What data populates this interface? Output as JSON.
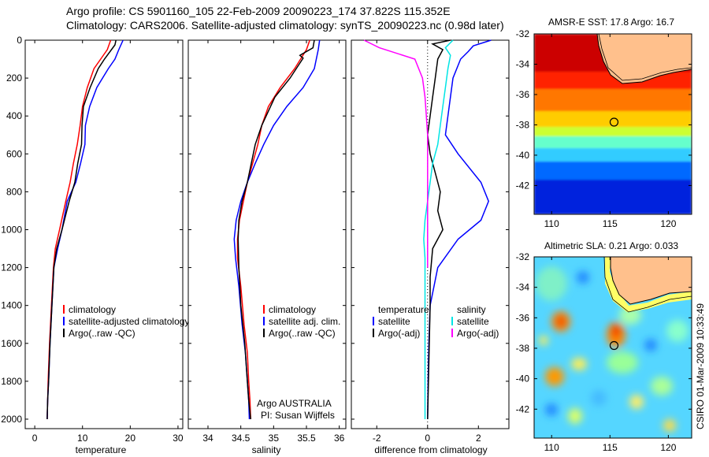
{
  "header": {
    "line1": "Argo profile: CS 5901160_105 22-Feb-2009 20090223_174 37.822S 115.352E",
    "line2": "Climatology: CARS2006. Satellite-adjusted climatology: synTS_20090223.nc (0.98d later)"
  },
  "credit": "CSIRO 01-Mar-2009 10:33:49",
  "chart_data": [
    {
      "type": "line",
      "id": "temperature",
      "xlabel": "temperature",
      "ylabel": "",
      "xlim": [
        -2,
        31
      ],
      "ylim": [
        2050,
        0
      ],
      "xticks": [
        "0",
        "10",
        "20",
        "30"
      ],
      "yticks": [
        "0",
        "200",
        "400",
        "600",
        "800",
        "1000",
        "1200",
        "1400",
        "1600",
        "1800",
        "2000"
      ],
      "legend": [
        "climatology",
        "satellite-adjusted climatology",
        "Argo(..raw -QC)"
      ],
      "series": [
        {
          "name": "climatology",
          "color": "#ff0000",
          "x": [
            15.9,
            15.2,
            13.8,
            12.4,
            11.0,
            10.0,
            9.5,
            8.9,
            8.1,
            7.4,
            6.5,
            5.2,
            4.3,
            3.9,
            3.5,
            3.1,
            2.8,
            2.7,
            2.6
          ],
          "y": [
            0,
            50,
            100,
            150,
            250,
            350,
            450,
            550,
            650,
            750,
            850,
            1000,
            1100,
            1200,
            1400,
            1600,
            1800,
            1900,
            2000
          ]
        },
        {
          "name": "satellite-adjusted climatology",
          "color": "#0000ff",
          "x": [
            18.5,
            17.6,
            16.8,
            15.4,
            13.0,
            11.5,
            10.6,
            10.5,
            9.6,
            8.6,
            6.8,
            5.7,
            4.8,
            4.0,
            3.6,
            3.2,
            2.9,
            2.7,
            2.6
          ],
          "y": [
            0,
            50,
            100,
            150,
            250,
            350,
            450,
            550,
            650,
            750,
            850,
            1000,
            1100,
            1200,
            1400,
            1600,
            1800,
            1900,
            2000
          ]
        },
        {
          "name": "Argo(..raw -QC)",
          "color": "#000000",
          "x": [
            17.0,
            16.8,
            14.6,
            13.3,
            11.6,
            10.2,
            9.9,
            9.8,
            9.0,
            8.4,
            7.2,
            5.7,
            4.6,
            4.0,
            3.6,
            3.2,
            2.9,
            2.7,
            2.6
          ],
          "y": [
            0,
            25,
            100,
            150,
            250,
            350,
            450,
            550,
            650,
            750,
            850,
            1000,
            1100,
            1200,
            1400,
            1600,
            1800,
            1900,
            2000
          ]
        }
      ]
    },
    {
      "type": "line",
      "id": "salinity",
      "xlabel": "salinity",
      "ylabel": "",
      "xlim": [
        33.7,
        36.1
      ],
      "ylim": [
        2050,
        0
      ],
      "xticks": [
        "34",
        "34.5",
        "35",
        "35.5",
        "36"
      ],
      "legend": [
        "climatology",
        "satellite adj. clim.",
        "Argo(..raw -QC)"
      ],
      "annotation": [
        "Argo AUSTRALIA",
        "PI: Susan Wijffels"
      ],
      "series": [
        {
          "name": "climatology",
          "color": "#ff0000",
          "x": [
            35.55,
            35.5,
            35.32,
            35.1,
            34.92,
            34.82,
            34.76,
            34.68,
            34.6,
            34.54,
            34.48,
            34.45,
            34.45,
            34.5,
            34.55,
            34.6,
            34.62,
            34.64,
            34.65
          ],
          "y": [
            0,
            50,
            150,
            250,
            350,
            450,
            550,
            650,
            750,
            850,
            950,
            1050,
            1150,
            1300,
            1500,
            1650,
            1800,
            1900,
            2000
          ]
        },
        {
          "name": "satellite adj. clim.",
          "color": "#0000ff",
          "x": [
            35.7,
            35.68,
            35.62,
            35.45,
            35.2,
            35.0,
            34.85,
            34.72,
            34.6,
            34.5,
            34.43,
            34.4,
            34.42,
            34.47,
            34.52,
            34.57,
            34.6,
            34.62,
            34.63
          ],
          "y": [
            0,
            50,
            150,
            250,
            350,
            450,
            550,
            650,
            750,
            850,
            950,
            1050,
            1150,
            1300,
            1500,
            1650,
            1800,
            1900,
            2000
          ]
        },
        {
          "name": "Argo(..raw -QC)",
          "color": "#000000",
          "x": [
            35.62,
            35.6,
            35.4,
            35.45,
            35.25,
            35.02,
            34.82,
            34.72,
            34.66,
            34.6,
            34.52,
            34.47,
            34.46,
            34.47,
            34.5,
            34.56,
            34.6,
            34.62,
            34.65
          ],
          "y": [
            0,
            40,
            80,
            95,
            200,
            300,
            450,
            550,
            650,
            750,
            850,
            950,
            1050,
            1200,
            1400,
            1600,
            1800,
            1900,
            2000
          ]
        }
      ]
    },
    {
      "type": "line",
      "id": "difference",
      "xlabel": "difference from climatology",
      "ylabel": "",
      "xlim": [
        -3,
        3.2
      ],
      "ylim": [
        2050,
        0
      ],
      "xticks": [
        "-2",
        "0",
        "2"
      ],
      "legend": [
        "temperature",
        "satellite",
        "Argo(-adj)",
        "salinity",
        "satellite",
        "Argo(-adj)"
      ],
      "series": [
        {
          "name": "temperature satellite",
          "color": "#0000ff",
          "x": [
            2.5,
            1.8,
            1.6,
            1.3,
            1.0,
            0.9,
            0.8,
            0.7,
            1.2,
            2.1,
            2.4,
            2.1,
            1.2,
            0.4,
            0.1,
            0.05,
            0.02,
            0.0
          ],
          "y": [
            0,
            30,
            60,
            100,
            200,
            300,
            400,
            500,
            600,
            750,
            850,
            950,
            1050,
            1200,
            1400,
            1600,
            1800,
            2000
          ]
        },
        {
          "name": "temperature Argo(-adj)",
          "color": "#000000",
          "x": [
            0.9,
            0.2,
            0.6,
            0.4,
            0.3,
            0.2,
            0.1,
            0.0,
            0.1,
            0.3,
            0.5,
            0.4,
            0.6,
            0.2,
            0.1,
            0.1,
            0.05,
            0.0
          ],
          "y": [
            0,
            20,
            50,
            100,
            200,
            300,
            400,
            500,
            600,
            700,
            800,
            900,
            1000,
            1100,
            1250,
            1400,
            1700,
            2000
          ]
        },
        {
          "name": "salinity satellite",
          "color": "#00e5e5",
          "x": [
            1.0,
            0.7,
            0.9,
            0.8,
            0.7,
            0.6,
            0.5,
            0.4,
            0.2,
            0.1,
            0.0,
            -0.1,
            -0.15,
            -0.1,
            -0.1,
            -0.1,
            -0.1,
            -0.1
          ],
          "y": [
            0,
            40,
            80,
            150,
            250,
            350,
            450,
            550,
            650,
            750,
            850,
            950,
            1050,
            1150,
            1300,
            1500,
            1800,
            2000
          ]
        },
        {
          "name": "salinity Argo(-adj)",
          "color": "#ff00ff",
          "x": [
            -2.5,
            -1.9,
            -0.5,
            -0.2,
            -0.1,
            -0.05,
            0.0,
            0.0,
            0.0,
            0.0,
            0.0,
            0.0,
            0.0,
            0.0
          ],
          "y": [
            0,
            40,
            100,
            200,
            300,
            400,
            500,
            650,
            800,
            900,
            1000,
            1050,
            1100,
            1200
          ]
        }
      ]
    },
    {
      "type": "heatmap",
      "id": "sst",
      "title": "AMSR-E SST: 17.8 Argo: 16.7",
      "xlim": [
        108.5,
        122
      ],
      "ylim": [
        -43.9,
        -32
      ],
      "xticks": [
        "110",
        "115",
        "120"
      ],
      "yticks": [
        "-32",
        "-34",
        "-36",
        "-38",
        "-40",
        "-42"
      ],
      "argo_position": [
        115.35,
        -37.82
      ]
    },
    {
      "type": "heatmap",
      "id": "sla",
      "title": "Altimetric SLA: 0.21 Argo: 0.033",
      "xlim": [
        108.5,
        122
      ],
      "ylim": [
        -43.9,
        -32
      ],
      "xticks": [
        "110",
        "115",
        "120"
      ],
      "yticks": [
        "-32",
        "-34",
        "-36",
        "-38",
        "-40",
        "-42"
      ],
      "argo_position": [
        115.35,
        -37.82
      ]
    }
  ]
}
